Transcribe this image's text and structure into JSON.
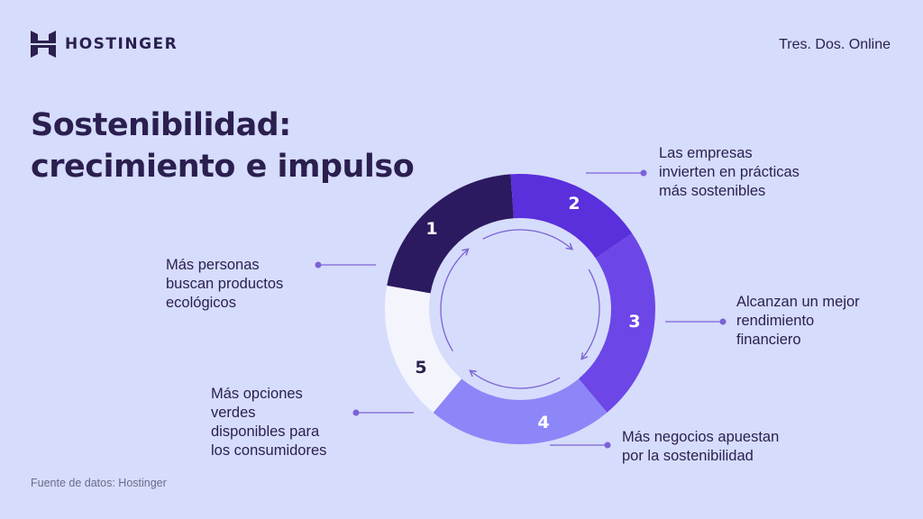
{
  "header": {
    "brand": "HOSTINGER",
    "tagline": "Tres. Dos. Online"
  },
  "title": {
    "line1": "Sostenibilidad:",
    "line2": "crecimiento e impulso"
  },
  "steps": [
    {
      "number": "1",
      "color": "#2c1a60",
      "lines": [
        "Más personas",
        "buscan productos",
        "ecológicos"
      ]
    },
    {
      "number": "2",
      "color": "#5a2fdc",
      "lines": [
        "Las empresas",
        "invierten en prácticas",
        "más sostenibles"
      ]
    },
    {
      "number": "3",
      "color": "#6d46e8",
      "lines": [
        "Alcanzan un mejor",
        "rendimiento",
        "financiero"
      ]
    },
    {
      "number": "4",
      "color": "#8d86f8",
      "lines": [
        "Más negocios apuestan",
        "por la sostenibilidad"
      ]
    },
    {
      "number": "5",
      "color": "#f4f5fc",
      "lines": [
        "Más opciones",
        "verdes",
        "disponibles para",
        "los consumidores"
      ]
    }
  ],
  "colors": {
    "background": "#d6dcfb",
    "text": "#2a1f4f",
    "connector": "#7b62d6",
    "inner_arrows": "#7b62d6"
  },
  "footer": {
    "source": "Fuente de datos: Hostinger"
  }
}
